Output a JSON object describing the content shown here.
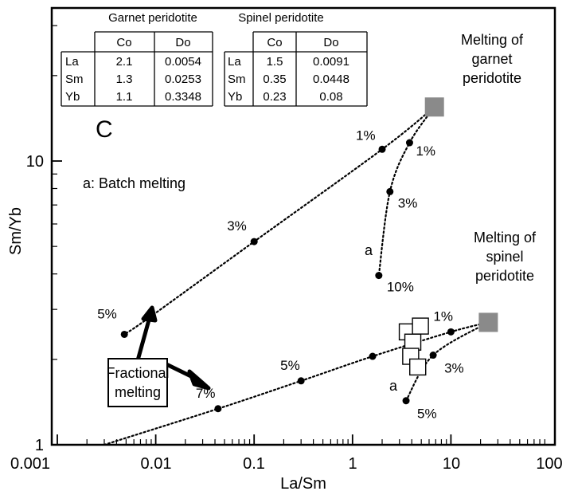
{
  "chart_data": {
    "type": "scatter",
    "xlabel": "La/Sm",
    "ylabel": "Sm/Yb",
    "x_scale": "log",
    "y_scale": "log",
    "xlim": [
      0.001,
      100
    ],
    "ylim": [
      1,
      30
    ],
    "grid": false,
    "x_ticks": [
      "0.001",
      "0.01",
      "0.1",
      "1",
      "10",
      "100"
    ],
    "y_ticks": [
      "1",
      "10"
    ],
    "panel_letter": "C",
    "batch_label": "a: Batch melting",
    "tables": [
      {
        "title": "Garnet peridotite",
        "headers": [
          "Co",
          "Do"
        ],
        "rows": [
          {
            "el": "La",
            "co": "2.1",
            "do": "0.0054"
          },
          {
            "el": "Sm",
            "co": "1.3",
            "do": "0.0253"
          },
          {
            "el": "Yb",
            "co": "1.1",
            "do": "0.3348"
          }
        ]
      },
      {
        "title": "Spinel peridotite",
        "headers": [
          "Co",
          "Do"
        ],
        "rows": [
          {
            "el": "La",
            "co": "1.5",
            "do": "0.0091"
          },
          {
            "el": "Sm",
            "co": "0.35",
            "do": "0.0448"
          },
          {
            "el": "Yb",
            "co": "0.23",
            "do": "0.08"
          }
        ]
      }
    ],
    "sources": [
      {
        "label_lines": [
          "Melting of",
          "garnet",
          "peridotite"
        ],
        "x": 6.8,
        "y": 15.5,
        "color": "#8a8a8a"
      },
      {
        "label_lines": [
          "Melting of",
          "spinel",
          "peridotite"
        ],
        "x": 24,
        "y": 2.7,
        "color": "#8a8a8a"
      }
    ],
    "series": [
      {
        "curve": "garnet-fractional",
        "points": [
          {
            "x": 6.8,
            "y": 15.5
          },
          {
            "x": 2.0,
            "y": 11.0,
            "label": "1%",
            "dot": true
          },
          {
            "x": 0.1,
            "y": 5.2,
            "label": "3%",
            "dot": true
          },
          {
            "x": 0.0085,
            "y": 2.8
          },
          {
            "x": 0.0048,
            "y": 2.45,
            "label": "5%",
            "dot": true
          }
        ]
      },
      {
        "curve": "garnet-batch",
        "curve_label": "a",
        "points": [
          {
            "x": 6.8,
            "y": 15.5
          },
          {
            "x": 3.8,
            "y": 11.6,
            "label": "1%",
            "dot": true
          },
          {
            "x": 2.4,
            "y": 7.8,
            "label": "3%",
            "dot": true
          },
          {
            "x": 1.85,
            "y": 3.95,
            "label": "10%",
            "dot": true
          }
        ]
      },
      {
        "curve": "spinel-fractional",
        "points": [
          {
            "x": 24,
            "y": 2.7
          },
          {
            "x": 10,
            "y": 2.5,
            "label": "1%",
            "dot": true
          },
          {
            "x": 1.6,
            "y": 2.05,
            "dot": true
          },
          {
            "x": 0.3,
            "y": 1.68,
            "label": "5%",
            "dot": true
          },
          {
            "x": 0.043,
            "y": 1.34,
            "label": "7%",
            "dot": true
          },
          {
            "x": 0.003,
            "y": 1.0
          }
        ]
      },
      {
        "curve": "spinel-batch",
        "curve_label": "a",
        "points": [
          {
            "x": 24,
            "y": 2.7
          },
          {
            "x": 6.6,
            "y": 2.07,
            "label": "3%",
            "dot": true
          },
          {
            "x": 3.5,
            "y": 1.43,
            "label": "5%",
            "dot": true
          }
        ]
      }
    ],
    "open_squares": [
      {
        "x": 3.6,
        "y": 2.5
      },
      {
        "x": 4.9,
        "y": 2.62
      },
      {
        "x": 4.1,
        "y": 2.3
      },
      {
        "x": 3.9,
        "y": 2.05
      },
      {
        "x": 4.6,
        "y": 1.88
      }
    ],
    "annotation": {
      "lines": [
        "Fractional",
        "melting"
      ]
    }
  }
}
